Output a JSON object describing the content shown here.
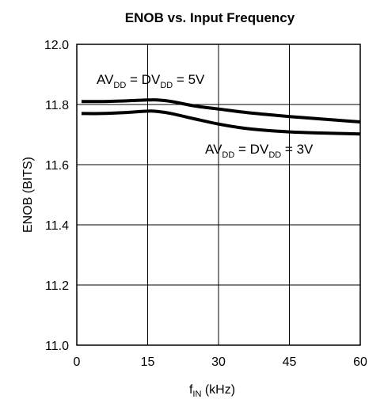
{
  "chart_data": {
    "type": "line",
    "title": "ENOB vs. Input Frequency",
    "xlabel": {
      "main": "f",
      "sub": "IN",
      "rest": " (kHz)"
    },
    "ylabel": "ENOB (BITS)",
    "xlim": [
      0,
      60
    ],
    "ylim": [
      11.0,
      12.0
    ],
    "x_ticks": [
      0,
      15,
      30,
      45,
      60
    ],
    "y_ticks": [
      11.0,
      11.2,
      11.4,
      11.6,
      11.8,
      12.0
    ],
    "x_tick_labels": [
      "0",
      "15",
      "30",
      "45",
      "60"
    ],
    "y_tick_labels": [
      "11.0",
      "11.2",
      "11.4",
      "11.6",
      "11.8",
      "12.0"
    ],
    "grid": true,
    "series": [
      {
        "x": [
          1,
          5,
          10,
          15,
          17,
          20,
          25,
          30,
          35,
          40,
          45,
          50,
          55,
          60
        ],
        "values": [
          11.81,
          11.81,
          11.812,
          11.815,
          11.815,
          11.81,
          11.795,
          11.785,
          11.775,
          11.767,
          11.76,
          11.754,
          11.748,
          11.742
        ]
      },
      {
        "x": [
          1,
          5,
          10,
          15,
          17,
          20,
          25,
          30,
          35,
          40,
          45,
          50,
          55,
          60
        ],
        "values": [
          11.77,
          11.77,
          11.773,
          11.778,
          11.777,
          11.77,
          11.752,
          11.735,
          11.722,
          11.714,
          11.709,
          11.706,
          11.704,
          11.702
        ]
      }
    ],
    "annotations": [
      {
        "parts": [
          "AV",
          "DD",
          " = DV",
          "DD",
          " = 5V"
        ]
      },
      {
        "parts": [
          "AV",
          "DD",
          " = DV",
          "DD",
          " = 3V"
        ]
      }
    ]
  }
}
